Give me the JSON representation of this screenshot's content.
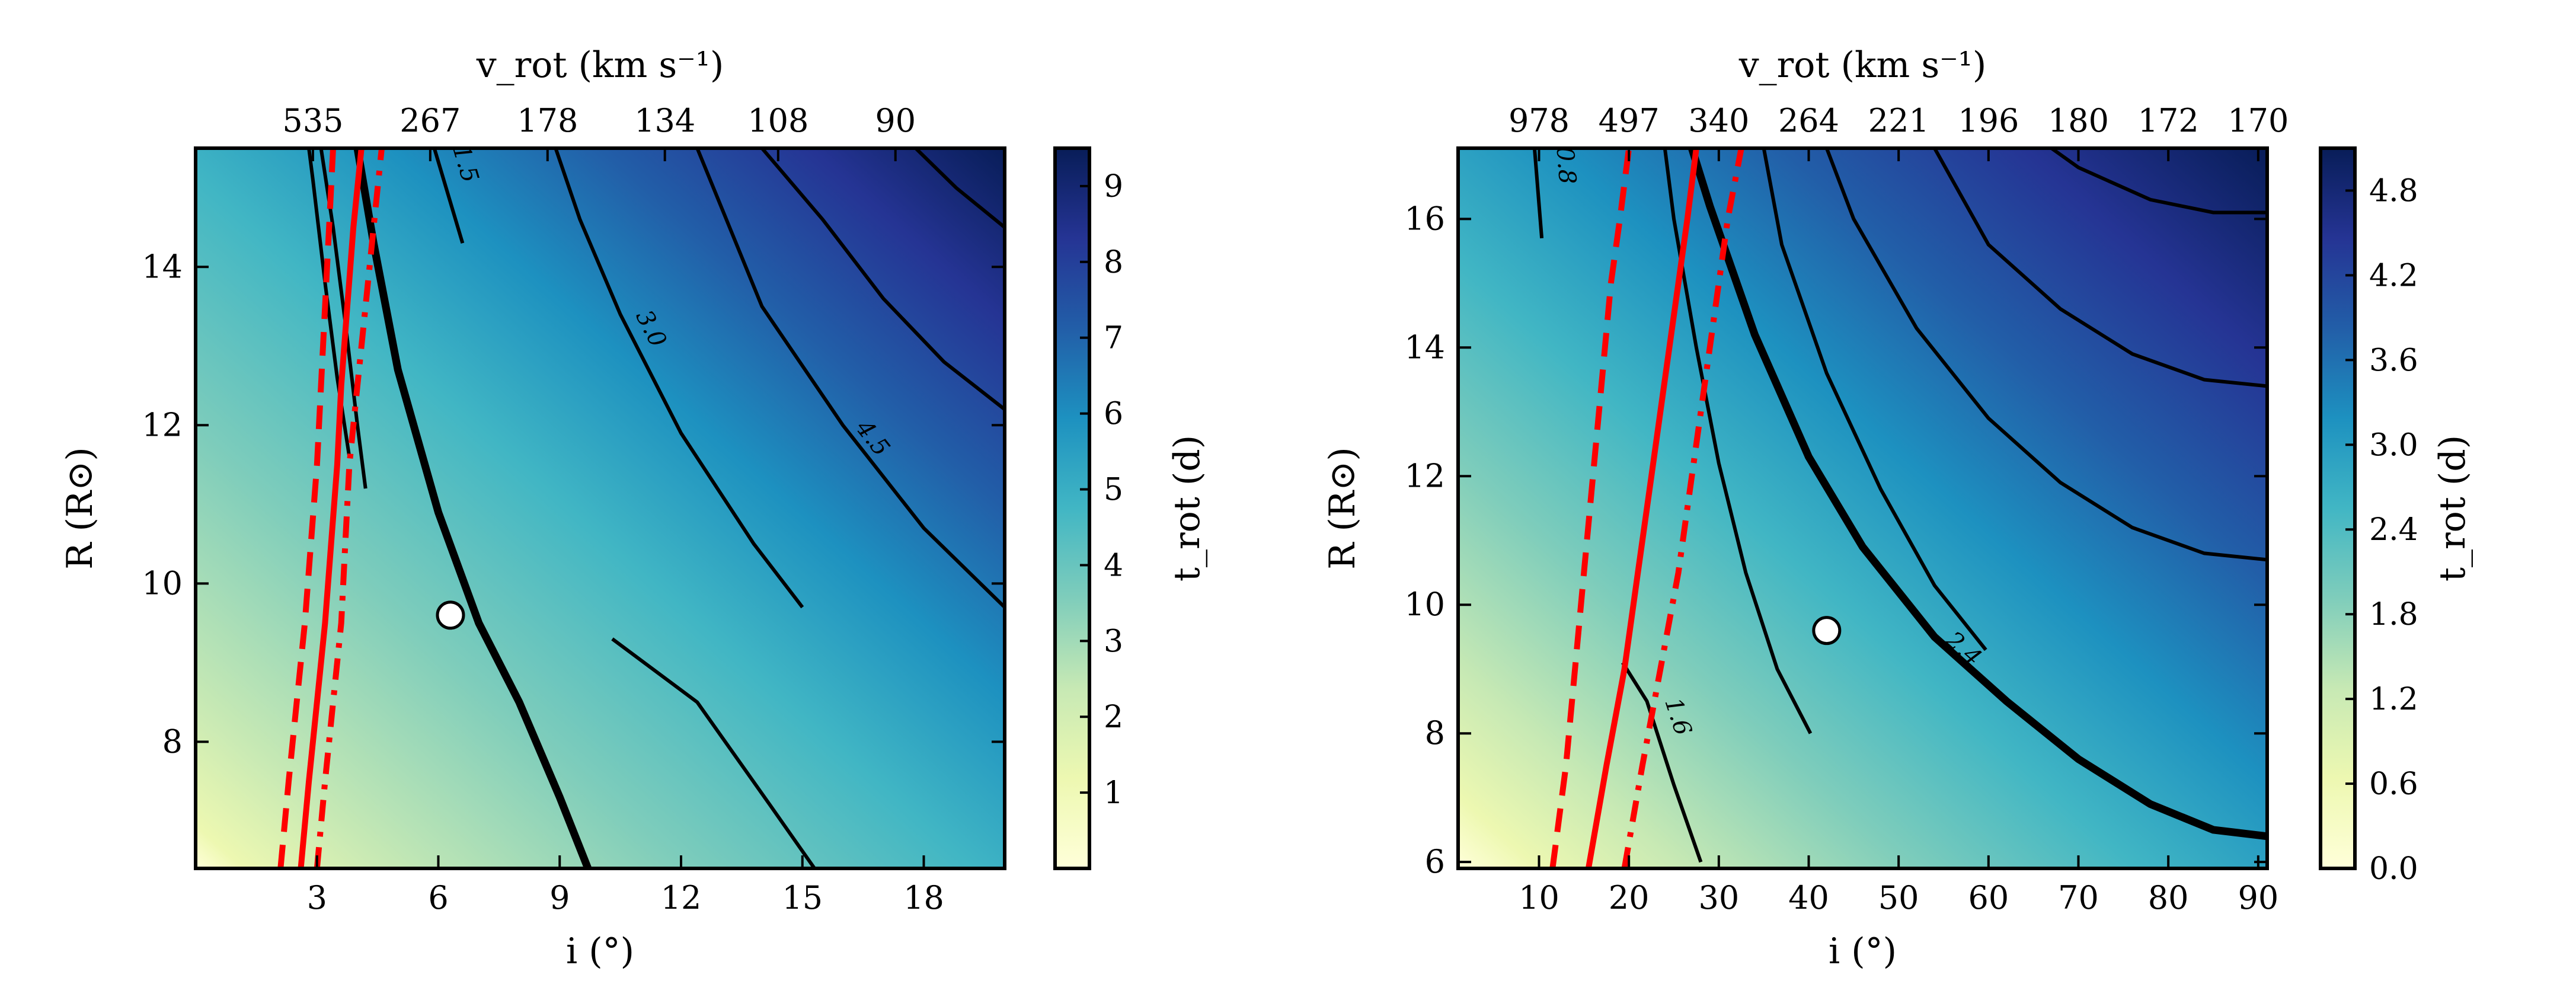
{
  "colors": {
    "cmap": [
      "#ffffd9",
      "#edf8b1",
      "#c7e9b4",
      "#7fcdbb",
      "#41b6c4",
      "#1d91c0",
      "#225ea8",
      "#253494",
      "#081d58"
    ],
    "constraint_line": "#ff0000",
    "contour_line": "#000000",
    "marker_fill": "#ffffff"
  },
  "chart_data": [
    {
      "type": "heatmap",
      "panel": "left",
      "xlabel": "i (°)",
      "ylabel": "R (R⊙)",
      "top_xlabel": "v_rot (km s⁻¹)",
      "colorbar_label": "t_rot (d)",
      "xlim": [
        0,
        20
      ],
      "ylim": [
        6.4,
        15.5
      ],
      "x_ticks": [
        3,
        6,
        9,
        12,
        15,
        18
      ],
      "x_tick_labels": [
        "3",
        "6",
        "9",
        "12",
        "15",
        "18"
      ],
      "y_ticks": [
        8,
        10,
        12,
        14
      ],
      "y_tick_labels": [
        "8",
        "10",
        "12",
        "14"
      ],
      "top_ticks": [
        {
          "label": "535",
          "x": 2.9
        },
        {
          "label": "267",
          "x": 5.8
        },
        {
          "label": "178",
          "x": 8.7
        },
        {
          "label": "134",
          "x": 11.6
        },
        {
          "label": "108",
          "x": 14.4
        },
        {
          "label": "90",
          "x": 17.3
        }
      ],
      "colorbar": {
        "vmin": 0,
        "vmax": 9.5,
        "ticks": [
          1,
          2,
          3,
          4,
          5,
          6,
          7,
          8,
          9
        ],
        "tick_labels": [
          "1",
          "2",
          "3",
          "4",
          "5",
          "6",
          "7",
          "8",
          "9"
        ]
      },
      "grid": false,
      "contours": [
        {
          "label": "1.5",
          "points": [
            [
              6.6,
              14.3
            ],
            [
              5.9,
              15.5
            ]
          ]
        },
        {
          "label": "",
          "points": [
            [
              4.2,
              11.2
            ],
            [
              4.0,
              12.0
            ],
            [
              3.7,
              13.3
            ],
            [
              3.4,
              14.5
            ],
            [
              3.1,
              15.5
            ]
          ]
        },
        {
          "label": "",
          "points": [
            [
              3.8,
              11.6
            ],
            [
              3.5,
              12.6
            ],
            [
              3.2,
              13.8
            ],
            [
              2.9,
              15.1
            ],
            [
              2.8,
              15.5
            ]
          ]
        },
        {
          "label": "",
          "points": [
            [
              9.7,
              6.4
            ],
            [
              9.0,
              7.3
            ],
            [
              8.0,
              8.5
            ],
            [
              7.0,
              9.5
            ],
            [
              6.0,
              10.9
            ],
            [
              5.0,
              12.7
            ],
            [
              4.4,
              14.3
            ],
            [
              4.0,
              15.5
            ]
          ],
          "bold": true
        },
        {
          "label": "3.0",
          "points": [
            [
              15.0,
              9.7
            ],
            [
              13.8,
              10.5
            ],
            [
              12.0,
              11.9
            ],
            [
              10.5,
              13.4
            ],
            [
              9.5,
              14.6
            ],
            [
              8.9,
              15.5
            ]
          ]
        },
        {
          "label": "",
          "points": [
            [
              15.3,
              6.4
            ],
            [
              14.2,
              7.2
            ],
            [
              12.4,
              8.5
            ],
            [
              10.3,
              9.3
            ]
          ]
        },
        {
          "label": "",
          "points": [
            [
              20.0,
              12.2
            ],
            [
              18.5,
              12.8
            ],
            [
              17.0,
              13.6
            ],
            [
              15.5,
              14.6
            ],
            [
              14.0,
              15.5
            ]
          ]
        },
        {
          "label": "4.5",
          "points": [
            [
              20.0,
              9.7
            ],
            [
              18.0,
              10.7
            ],
            [
              16.0,
              12.0
            ],
            [
              14.0,
              13.5
            ],
            [
              12.4,
              15.5
            ]
          ]
        },
        {
          "label": "",
          "points": [
            [
              20.0,
              14.5
            ],
            [
              18.8,
              15.0
            ],
            [
              17.8,
              15.5
            ]
          ]
        }
      ],
      "constraints": [
        {
          "style": "solid",
          "points": [
            [
              2.6,
              6.4
            ],
            [
              2.8,
              7.5
            ],
            [
              3.0,
              8.5
            ],
            [
              3.2,
              9.5
            ],
            [
              3.35,
              10.5
            ],
            [
              3.5,
              11.5
            ],
            [
              3.6,
              12.5
            ],
            [
              3.75,
              13.5
            ],
            [
              3.9,
              14.5
            ],
            [
              4.1,
              15.5
            ]
          ]
        },
        {
          "style": "dashed",
          "points": [
            [
              2.1,
              6.4
            ],
            [
              2.3,
              7.5
            ],
            [
              2.5,
              8.5
            ],
            [
              2.7,
              9.5
            ],
            [
              2.85,
              10.5
            ],
            [
              3.0,
              11.5
            ],
            [
              3.1,
              12.5
            ],
            [
              3.2,
              13.5
            ],
            [
              3.3,
              14.5
            ],
            [
              3.4,
              15.5
            ]
          ]
        },
        {
          "style": "dashdot",
          "points": [
            [
              3.0,
              6.4
            ],
            [
              3.2,
              7.5
            ],
            [
              3.4,
              8.5
            ],
            [
              3.6,
              9.5
            ],
            [
              3.7,
              10.5
            ],
            [
              3.8,
              11.5
            ],
            [
              4.0,
              12.5
            ],
            [
              4.2,
              13.5
            ],
            [
              4.4,
              14.5
            ],
            [
              4.6,
              15.5
            ]
          ]
        }
      ],
      "marker": {
        "x": 6.3,
        "y": 9.6
      }
    },
    {
      "type": "heatmap",
      "panel": "right",
      "xlabel": "i (°)",
      "ylabel": "R (R⊙)",
      "top_xlabel": "v_rot (km s⁻¹)",
      "colorbar_label": "t_rot (d)",
      "xlim": [
        1,
        91
      ],
      "ylim": [
        5.9,
        17.1
      ],
      "x_ticks": [
        10,
        20,
        30,
        40,
        50,
        60,
        70,
        80,
        90
      ],
      "x_tick_labels": [
        "10",
        "20",
        "30",
        "40",
        "50",
        "60",
        "70",
        "80",
        "90"
      ],
      "y_ticks": [
        6,
        8,
        10,
        12,
        14,
        16
      ],
      "y_tick_labels": [
        "6",
        "8",
        "10",
        "12",
        "14",
        "16"
      ],
      "top_ticks": [
        {
          "label": "978",
          "x": 10
        },
        {
          "label": "497",
          "x": 20
        },
        {
          "label": "340",
          "x": 30
        },
        {
          "label": "264",
          "x": 40
        },
        {
          "label": "221",
          "x": 50
        },
        {
          "label": "196",
          "x": 60
        },
        {
          "label": "180",
          "x": 70
        },
        {
          "label": "172",
          "x": 80
        },
        {
          "label": "170",
          "x": 90
        }
      ],
      "colorbar": {
        "vmin": 0,
        "vmax": 5.1,
        "ticks": [
          0.0,
          0.6,
          1.2,
          1.8,
          2.4,
          3.0,
          3.6,
          4.2,
          4.8
        ],
        "tick_labels": [
          "0.0",
          "0.6",
          "1.2",
          "1.8",
          "2.4",
          "3.0",
          "3.6",
          "4.2",
          "4.8"
        ]
      },
      "grid": false,
      "contours": [
        {
          "label": "0.8",
          "points": [
            [
              10.3,
              15.7
            ],
            [
              9.5,
              17.1
            ]
          ]
        },
        {
          "label": "1.6",
          "points": [
            [
              28,
              6.0
            ],
            [
              25,
              7.2
            ],
            [
              22,
              8.5
            ],
            [
              19.3,
              9.1
            ]
          ]
        },
        {
          "label": "",
          "points": [
            [
              40.2,
              8.0
            ],
            [
              36.5,
              9.0
            ],
            [
              33,
              10.5
            ],
            [
              30,
              12.2
            ],
            [
              27.5,
              14.0
            ],
            [
              25,
              16.0
            ],
            [
              24,
              17.1
            ]
          ]
        },
        {
          "label": "",
          "points": [
            [
              59.7,
              9.3
            ],
            [
              54,
              10.3
            ],
            [
              48,
              11.8
            ],
            [
              42,
              13.6
            ],
            [
              37,
              15.6
            ],
            [
              35,
              17.1
            ]
          ]
        },
        {
          "label": "2.4",
          "points": [
            [
              91,
              6.4
            ],
            [
              85,
              6.5
            ],
            [
              78,
              6.9
            ],
            [
              70,
              7.6
            ],
            [
              62,
              8.5
            ],
            [
              54,
              9.5
            ],
            [
              46,
              10.9
            ],
            [
              40,
              12.3
            ],
            [
              34,
              14.2
            ],
            [
              29,
              16.2
            ],
            [
              27,
              17.1
            ]
          ],
          "bold": true
        },
        {
          "label": "",
          "points": [
            [
              91,
              10.7
            ],
            [
              84,
              10.8
            ],
            [
              76,
              11.2
            ],
            [
              68,
              11.9
            ],
            [
              60,
              12.9
            ],
            [
              52,
              14.3
            ],
            [
              45,
              16.0
            ],
            [
              42,
              17.1
            ]
          ]
        },
        {
          "label": "",
          "points": [
            [
              91,
              13.4
            ],
            [
              84,
              13.5
            ],
            [
              76,
              13.9
            ],
            [
              68,
              14.6
            ],
            [
              60,
              15.6
            ],
            [
              54,
              17.1
            ]
          ]
        },
        {
          "label": "",
          "points": [
            [
              91,
              16.1
            ],
            [
              85,
              16.1
            ],
            [
              78,
              16.3
            ],
            [
              70,
              16.8
            ],
            [
              67,
              17.1
            ]
          ]
        }
      ],
      "constraints": [
        {
          "style": "solid",
          "points": [
            [
              15.5,
              5.9
            ],
            [
              17.5,
              7.5
            ],
            [
              19.5,
              9.0
            ],
            [
              21,
              10.5
            ],
            [
              22.5,
              12.0
            ],
            [
              24,
              13.5
            ],
            [
              25.5,
              15.0
            ],
            [
              26.5,
              16.0
            ],
            [
              27.5,
              17.1
            ]
          ]
        },
        {
          "style": "dashed",
          "points": [
            [
              11.5,
              5.9
            ],
            [
              13,
              7.5
            ],
            [
              14,
              9.0
            ],
            [
              15,
              10.5
            ],
            [
              16,
              12.0
            ],
            [
              17,
              13.5
            ],
            [
              18,
              15.0
            ],
            [
              19,
              16.0
            ],
            [
              20,
              17.1
            ]
          ]
        },
        {
          "style": "dashdot",
          "points": [
            [
              19.5,
              5.9
            ],
            [
              21.5,
              7.5
            ],
            [
              23.5,
              9.0
            ],
            [
              25.5,
              10.5
            ],
            [
              27,
              12.0
            ],
            [
              28.5,
              13.5
            ],
            [
              30,
              15.0
            ],
            [
              31,
              16.0
            ],
            [
              32.5,
              17.1
            ]
          ]
        }
      ],
      "marker": {
        "x": 42,
        "y": 9.6
      }
    }
  ]
}
